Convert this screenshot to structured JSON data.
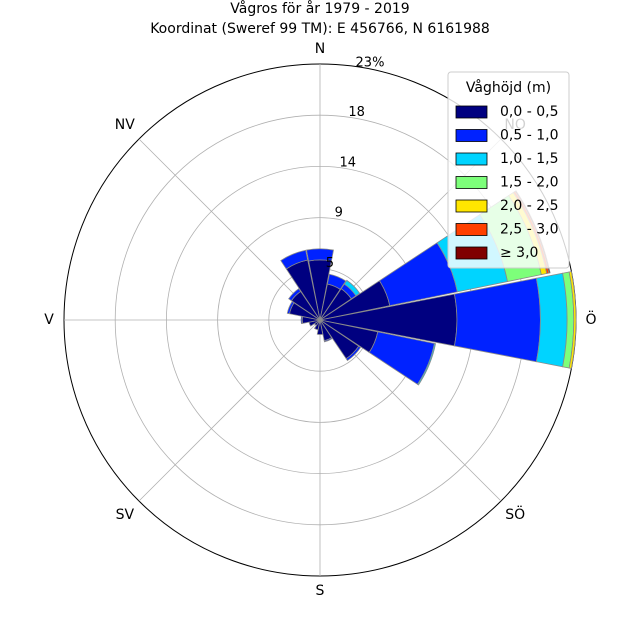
{
  "chart_data": {
    "type": "windrose",
    "title": "Vågros för år 1979 - 2019",
    "subtitle": "Koordinat (Sweref 99 TM): E 456766, N 6161988",
    "directions": [
      "N",
      "NO",
      "Ö",
      "SÖ",
      "S",
      "SV",
      "V",
      "NV"
    ],
    "radial_ticks": [
      "5",
      "9",
      "14",
      "18",
      "23%"
    ],
    "radial_values": [
      4.6,
      9.2,
      13.8,
      18.4,
      23.0
    ],
    "rmax": 23.0,
    "grid": true,
    "legend": {
      "title": "Våghöjd (m)",
      "placement": "top-right",
      "labels": [
        "0,0 - 0,5",
        "0,5 - 1,0",
        "1,0 - 1,5",
        "1,5 - 2,0",
        "2,0 - 2,5",
        "2,5 - 3,0",
        "≥ 3,0"
      ],
      "colors": [
        "#000080",
        "#0022ff",
        "#00d4ff",
        "#7dff7a",
        "#ffe600",
        "#ff4000",
        "#800000"
      ]
    },
    "sector_width_deg": 22.5,
    "sectors": [
      {
        "direction": 0,
        "cumulative": [
          5.4,
          6.4
        ]
      },
      {
        "direction": 22.5,
        "cumulative": [
          3.3,
          4.2
        ]
      },
      {
        "direction": 45,
        "cumulative": [
          3.4,
          3.9,
          4.3
        ]
      },
      {
        "direction": 67.5,
        "cumulative": [
          6.4,
          12.6,
          17.2,
          20.3,
          20.8,
          21.0,
          21.1
        ]
      },
      {
        "direction": 90,
        "cumulative": [
          12.3,
          19.8,
          22.2,
          22.8,
          23.0
        ]
      },
      {
        "direction": 112.5,
        "cumulative": [
          5.3,
          10.5,
          10.6
        ]
      },
      {
        "direction": 135,
        "cumulative": [
          4.2,
          4.4
        ]
      },
      {
        "direction": 157.5,
        "cumulative": [
          1.9,
          2.0
        ]
      },
      {
        "direction": 180,
        "cumulative": [
          1.3
        ]
      },
      {
        "direction": 202.5,
        "cumulative": [
          0.9
        ]
      },
      {
        "direction": 225,
        "cumulative": [
          0.6
        ]
      },
      {
        "direction": 247.5,
        "cumulative": [
          1.0
        ]
      },
      {
        "direction": 270,
        "cumulative": [
          1.6,
          1.7
        ]
      },
      {
        "direction": 292.5,
        "cumulative": [
          2.8,
          3.0
        ]
      },
      {
        "direction": 315,
        "cumulative": [
          3.1,
          3.4
        ]
      },
      {
        "direction": 337.5,
        "cumulative": [
          5.5,
          6.4
        ]
      }
    ]
  }
}
